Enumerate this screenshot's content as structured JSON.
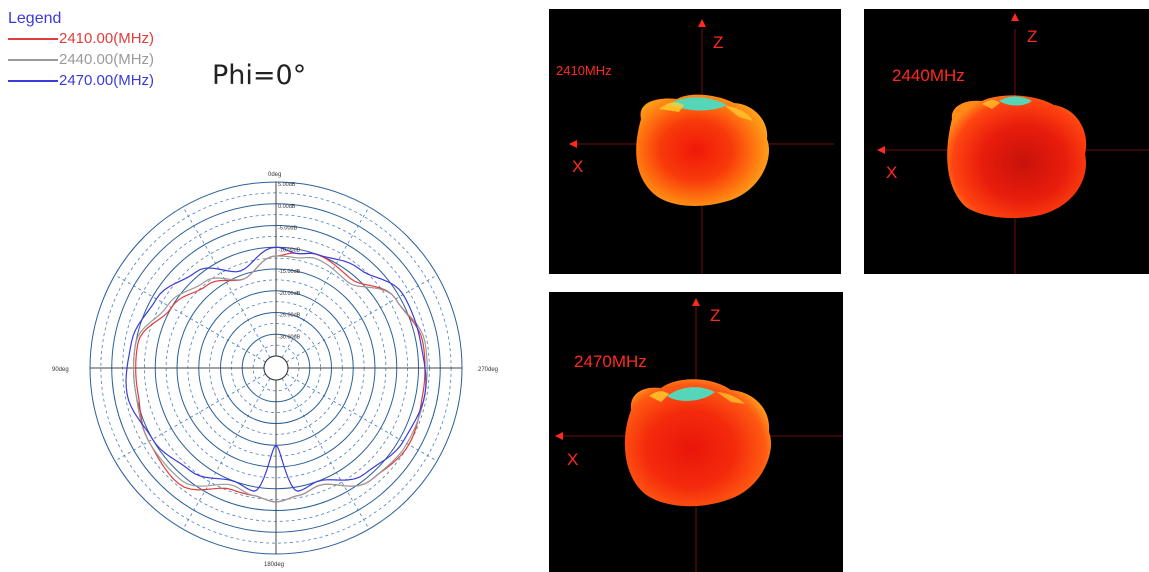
{
  "legend": {
    "title": "Legend",
    "items": [
      {
        "label": "2410.00(MHz)",
        "color": "#e23b3b"
      },
      {
        "label": "2440.00(MHz)",
        "color": "#9a9a9a"
      },
      {
        "label": "2470.00(MHz)",
        "color": "#3b3bd9"
      }
    ]
  },
  "phi_label": "Phi=0°",
  "chart_data": {
    "type": "polar",
    "angle_labels": [
      "0deg",
      "90deg",
      "270deg",
      "180deg"
    ],
    "radial_labels": [
      "5.00dB",
      "0.00dB",
      "-5.00dB",
      "-10.00dB",
      "-15.00dB",
      "-20.00dB",
      "-25.00dB",
      "-30.00dB"
    ],
    "rlim": [
      -35,
      5
    ],
    "grid": true,
    "series": [
      {
        "name": "2410.00(MHz)",
        "color": "#e23b3b",
        "angles": [
          0,
          20,
          40,
          60,
          80,
          100,
          120,
          140,
          160,
          170,
          180,
          190,
          200,
          220,
          240,
          260,
          280,
          300,
          320,
          340,
          350
        ],
        "values": [
          -12,
          -16,
          -13,
          -10,
          -5.5,
          -5.5,
          -4,
          -3,
          -8,
          -8,
          -7,
          -8,
          -9,
          -4,
          -2.5,
          -3.5,
          -3.5,
          -6,
          -11,
          -10,
          -11
        ]
      },
      {
        "name": "2440.00(MHz)",
        "color": "#9a9a9a",
        "angles": [
          0,
          20,
          40,
          60,
          80,
          100,
          120,
          140,
          160,
          170,
          180,
          190,
          200,
          220,
          240,
          260,
          280,
          300,
          320,
          340,
          350
        ],
        "values": [
          -12,
          -16,
          -12,
          -9,
          -5,
          -5,
          -4,
          -4,
          -9,
          -8,
          -7,
          -8,
          -9,
          -4,
          -3,
          -3,
          -3,
          -6,
          -12,
          -11,
          -12
        ]
      },
      {
        "name": "2470.00(MHz)",
        "color": "#3b3bd9",
        "angles": [
          0,
          20,
          40,
          60,
          80,
          100,
          120,
          140,
          160,
          170,
          180,
          190,
          200,
          220,
          240,
          260,
          280,
          300,
          320,
          340,
          350
        ],
        "values": [
          -10,
          -14,
          -9,
          -6,
          -4,
          -3,
          -5,
          -7,
          -10,
          -9,
          -20,
          -9,
          -10,
          -6,
          -4,
          -3,
          -4,
          -4,
          -8,
          -10,
          -11
        ]
      }
    ]
  },
  "panels": [
    {
      "freq_label": "2410MHz",
      "x_label": "X",
      "z_label": "Z"
    },
    {
      "freq_label": "2440MHz",
      "x_label": "X",
      "z_label": "Z"
    },
    {
      "freq_label": "2470MHz",
      "x_label": "X",
      "z_label": "Z"
    }
  ]
}
